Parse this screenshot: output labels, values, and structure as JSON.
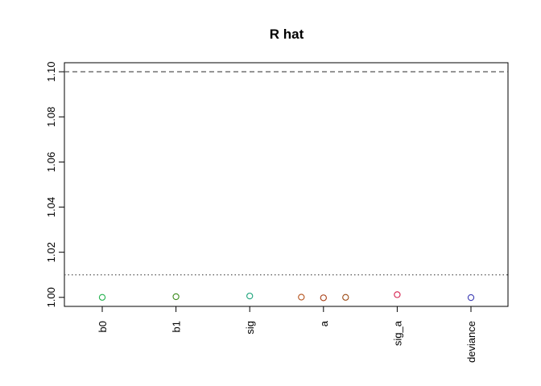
{
  "chart_data": {
    "type": "scatter",
    "title": "R hat",
    "xlabel": "",
    "ylabel": "",
    "ylim": [
      0.996,
      1.104
    ],
    "y_ticks": [
      "1.00",
      "1.02",
      "1.04",
      "1.06",
      "1.08",
      "1.10"
    ],
    "y_tick_values": [
      1.0,
      1.02,
      1.04,
      1.06,
      1.08,
      1.1
    ],
    "categories": [
      "b0",
      "b1",
      "sig",
      "a",
      "sig_a",
      "deviance"
    ],
    "reference_lines": [
      {
        "y": 1.1,
        "style": "dashed"
      },
      {
        "y": 1.01,
        "style": "dotted"
      }
    ],
    "points": [
      {
        "category": "b0",
        "offset": 0,
        "y": 1.0,
        "color": "#22b14c"
      },
      {
        "category": "b1",
        "offset": 0,
        "y": 1.0003,
        "color": "#3a8a1a"
      },
      {
        "category": "sig",
        "offset": 0,
        "y": 1.0006,
        "color": "#1aa37a"
      },
      {
        "category": "a",
        "offset": -1,
        "y": 1.0001,
        "color": "#b5521b"
      },
      {
        "category": "a",
        "offset": 0,
        "y": 0.9998,
        "color": "#a63a10"
      },
      {
        "category": "a",
        "offset": 1,
        "y": 1.0,
        "color": "#9c4a14"
      },
      {
        "category": "sig_a",
        "offset": 0,
        "y": 1.0012,
        "color": "#d6204e"
      },
      {
        "category": "deviance",
        "offset": 0,
        "y": 0.9999,
        "color": "#3b3bb3"
      }
    ],
    "grid": false,
    "legend": "none"
  }
}
